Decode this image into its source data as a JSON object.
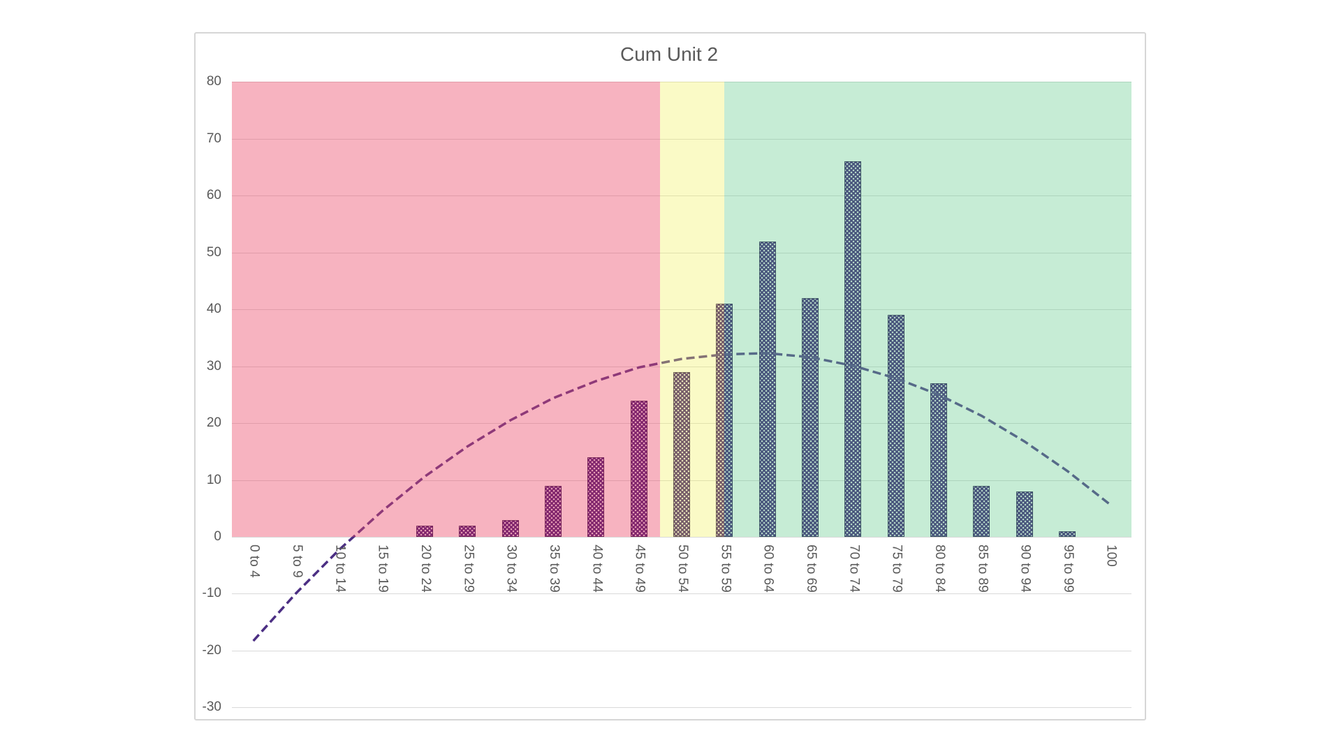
{
  "title": "Cum Unit 2",
  "chart_data": {
    "type": "bar",
    "title": "Cum Unit 2",
    "categories": [
      "0 to 4",
      "5 to 9",
      "10 to 14",
      "15 to 19",
      "20 to 24",
      "25 to 29",
      "30 to 34",
      "35 to 39",
      "40 to 44",
      "45 to 49",
      "50 to 54",
      "55 to 59",
      "60 to 64",
      "65 to 69",
      "70 to 74",
      "75 to 79",
      "80 to 84",
      "85 to 89",
      "90 to 94",
      "95 to 99",
      "100"
    ],
    "values": [
      0,
      0,
      0,
      0,
      2,
      2,
      3,
      9,
      14,
      24,
      29,
      41,
      52,
      42,
      66,
      39,
      27,
      9,
      8,
      1,
      0
    ],
    "trendline": {
      "style": "dashed-polynomial",
      "values": [
        -18.3,
        -9.9,
        -2.3,
        4.5,
        10.6,
        15.9,
        20.5,
        24.4,
        27.4,
        29.8,
        31.3,
        32.1,
        32.3,
        31.6,
        30.1,
        27.9,
        25.0,
        21.3,
        16.8,
        11.6,
        5.7
      ]
    },
    "y_ticks": [
      80,
      70,
      60,
      50,
      40,
      30,
      20,
      10,
      0,
      -10,
      -20,
      -30
    ],
    "ylim": [
      -30,
      80
    ],
    "xlabel": "",
    "ylabel": "",
    "grid": true,
    "legend": "none",
    "x_label_rotation_deg": 90,
    "bands": [
      {
        "name": "red",
        "color": "rgba(236,74,105,0.42)",
        "from_slot": 0,
        "to_slot": 10
      },
      {
        "name": "yellow",
        "color": "rgba(240,240,91,0.35)",
        "from_slot": 10,
        "to_slot": 11.5
      },
      {
        "name": "green",
        "color": "rgba(105,205,145,0.38)",
        "from_slot": 11.5,
        "to_slot": 21
      }
    ],
    "colors": {
      "bar_base": "#320A6E",
      "bar_dot": "rgba(255,255,255,0.85)",
      "bar_border": "rgba(30,5,70,0.9)",
      "trendline": "#4B2E83",
      "gridline": "#D9D9D9",
      "axis_label": "#595959",
      "title": "#595959",
      "chart_border": "#D6D6D6",
      "band_red_over_white": "#F7B3C0",
      "band_yellow_over_white": "#FAFAC6",
      "band_green_over_white": "#C6ECD5"
    }
  }
}
